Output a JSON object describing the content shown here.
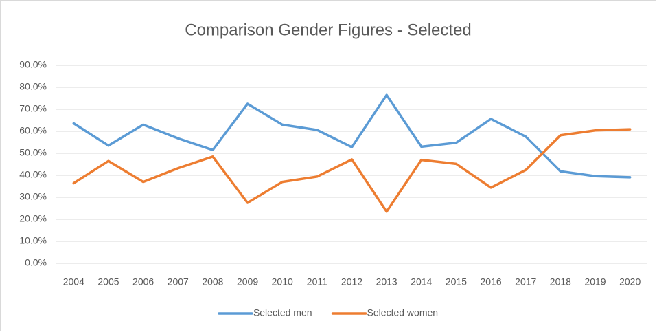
{
  "chart_data": {
    "type": "line",
    "title": "Comparison Gender Figures - Selected",
    "categories": [
      "2004",
      "2005",
      "2006",
      "2007",
      "2008",
      "2009",
      "2010",
      "2011",
      "2012",
      "2013",
      "2014",
      "2015",
      "2016",
      "2017",
      "2018",
      "2019",
      "2020"
    ],
    "series": [
      {
        "name": "Selected men",
        "color": "#5b9bd5",
        "values": [
          63.6,
          53.5,
          63.0,
          56.8,
          51.5,
          72.5,
          63.0,
          60.6,
          52.8,
          76.5,
          53.0,
          54.8,
          65.6,
          57.6,
          41.8,
          39.6,
          39.1
        ]
      },
      {
        "name": "Selected women",
        "color": "#ed7d31",
        "values": [
          36.4,
          46.5,
          37.0,
          43.2,
          48.5,
          27.5,
          37.0,
          39.4,
          47.2,
          23.5,
          47.0,
          45.2,
          34.4,
          42.4,
          58.2,
          60.4,
          60.9
        ]
      }
    ],
    "ylim": [
      0,
      90
    ],
    "yticks": [
      {
        "value": 0,
        "label": "0.0%"
      },
      {
        "value": 10,
        "label": "10.0%"
      },
      {
        "value": 20,
        "label": "20.0%"
      },
      {
        "value": 30,
        "label": "30.0%"
      },
      {
        "value": 40,
        "label": "40.0%"
      },
      {
        "value": 50,
        "label": "50.0%"
      },
      {
        "value": 60,
        "label": "60.0%"
      },
      {
        "value": 70,
        "label": "70.0%"
      },
      {
        "value": 80,
        "label": "80.0%"
      },
      {
        "value": 90,
        "label": "90.0%"
      }
    ],
    "grid": true,
    "legend": "bottom"
  }
}
